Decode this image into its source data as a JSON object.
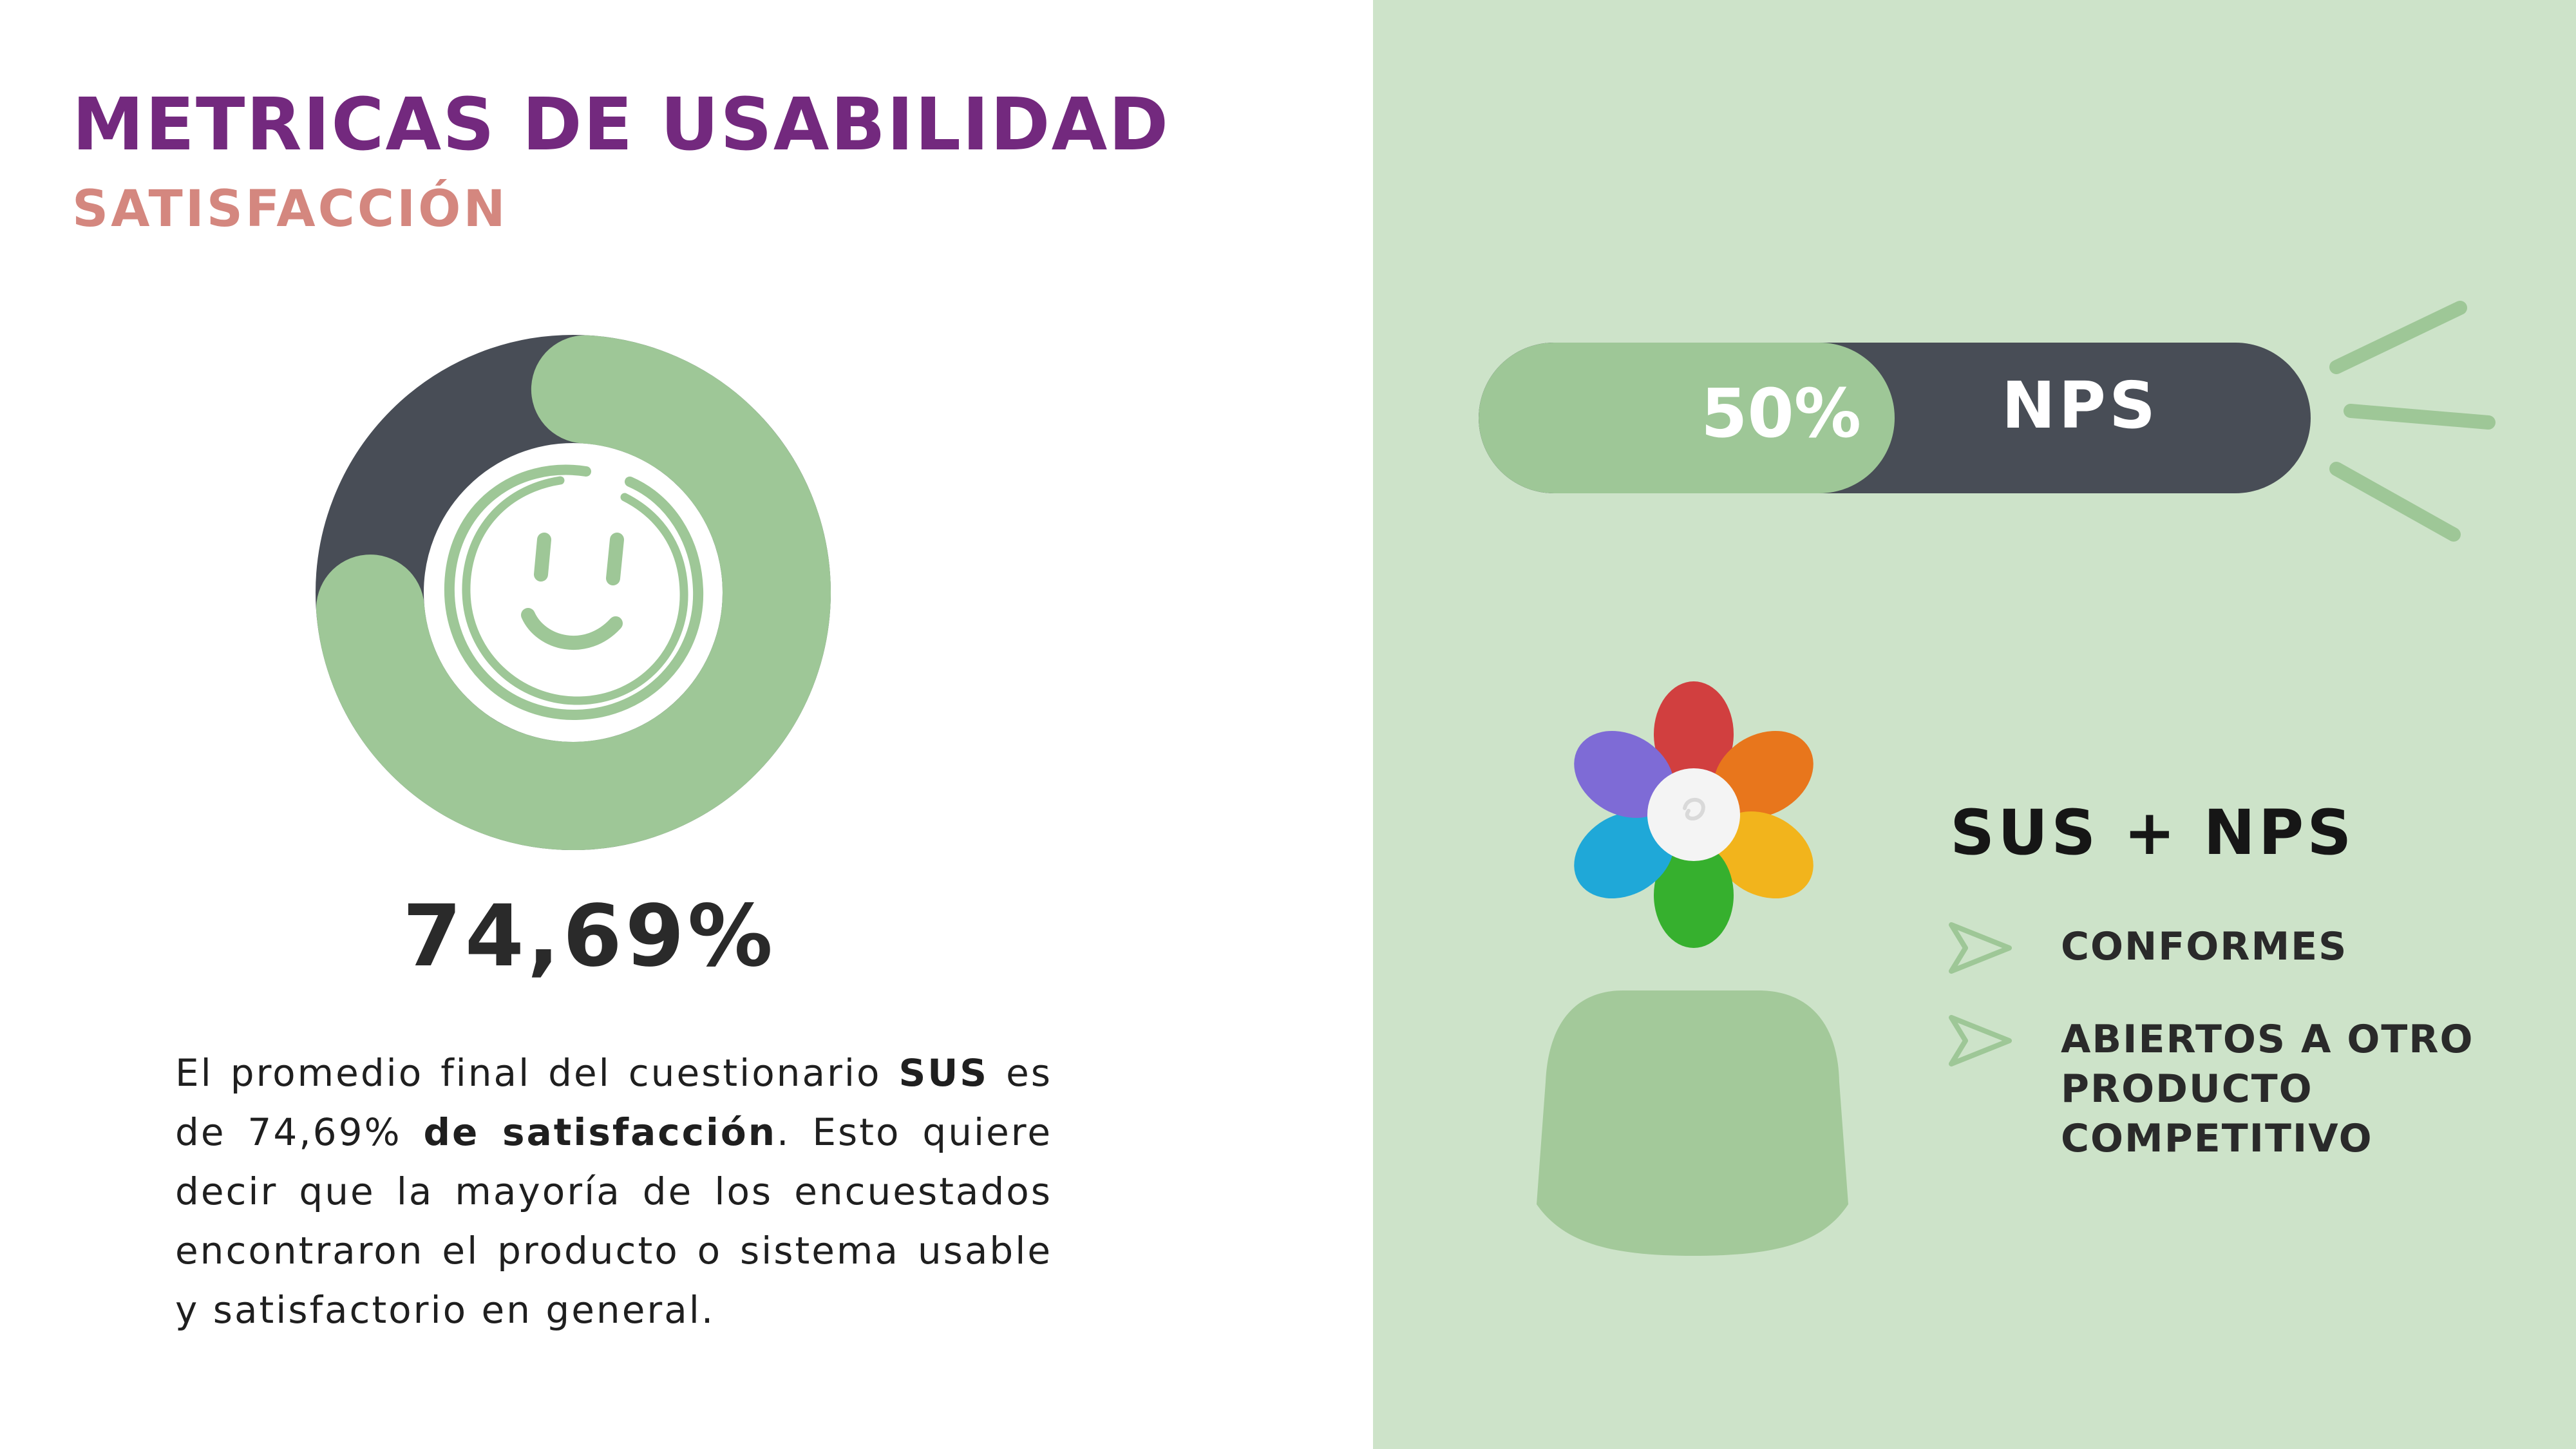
{
  "header": {
    "title": "METRICAS DE USABILIDAD",
    "subtitle": "SATISFACCIÓN"
  },
  "colors": {
    "title": "#73297e",
    "subtitle": "#d4877f",
    "accent_green": "#9ec797",
    "dark": "#484d56",
    "right_panel": "#cde3c9"
  },
  "sus": {
    "percent": 74.69,
    "value_text": "74,69%",
    "paragraph": {
      "p1": "El promedio final del cuestionario ",
      "b1": "SUS",
      "p2": " es de 74,69% ",
      "b2": "de satisfacción",
      "p3": ". Esto quiere decir que la mayoría de los encuestados encontraron el producto o sistema usable y satisfactorio en general."
    },
    "icon": "smiley-face-icon"
  },
  "nps": {
    "percent": 50,
    "percent_text": "50%",
    "label": "NPS"
  },
  "summary": {
    "title": "SUS + NPS",
    "items": [
      {
        "text": "CONFORMES",
        "icon": "paper-plane-arrow-icon"
      },
      {
        "text": "ABIERTOS A OTRO PRODUCTO COMPETITIVO",
        "icon": "paper-plane-arrow-icon"
      }
    ]
  },
  "illustration": {
    "icon": "flower-pot-icon"
  }
}
